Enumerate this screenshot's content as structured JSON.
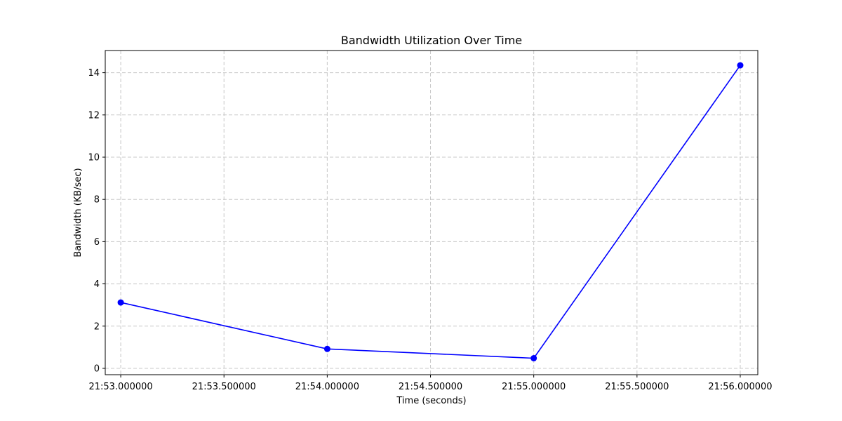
{
  "chart_data": {
    "type": "line",
    "title": "Bandwidth Utilization Over Time",
    "xlabel": "Time (seconds)",
    "ylabel": "Bandwidth (KB/sec)",
    "x_unit": "seconds",
    "x_ticks": [
      {
        "value": "21:53:00.0",
        "label": "21:53.000000"
      },
      {
        "value": "21:53:30.0",
        "label": "21:53.500000"
      },
      {
        "value": "21:54:00.0",
        "label": "21:54.000000"
      },
      {
        "value": "21:54:30.0",
        "label": "21:54.500000"
      },
      {
        "value": "21:55:00.0",
        "label": "21:55.000000"
      },
      {
        "value": "21:55:30.0",
        "label": "21:55.500000"
      },
      {
        "value": "21:56:00.0",
        "label": "21:56.000000"
      }
    ],
    "y_ticks": [
      0,
      2,
      4,
      6,
      8,
      10,
      12,
      14
    ],
    "xlim": [
      "21:52:55.5",
      "21:56:05.1"
    ],
    "ylim": [
      -0.3,
      15.05
    ],
    "grid": true,
    "legend": "none",
    "series": [
      {
        "color": "#0000ff",
        "marker": "circle",
        "points": [
          {
            "x": "21:53:00.0",
            "y": 3.12
          },
          {
            "x": "21:54:00.0",
            "y": 0.92
          },
          {
            "x": "21:55:00.0",
            "y": 0.48
          },
          {
            "x": "21:56:00.0",
            "y": 14.35
          }
        ]
      }
    ]
  }
}
